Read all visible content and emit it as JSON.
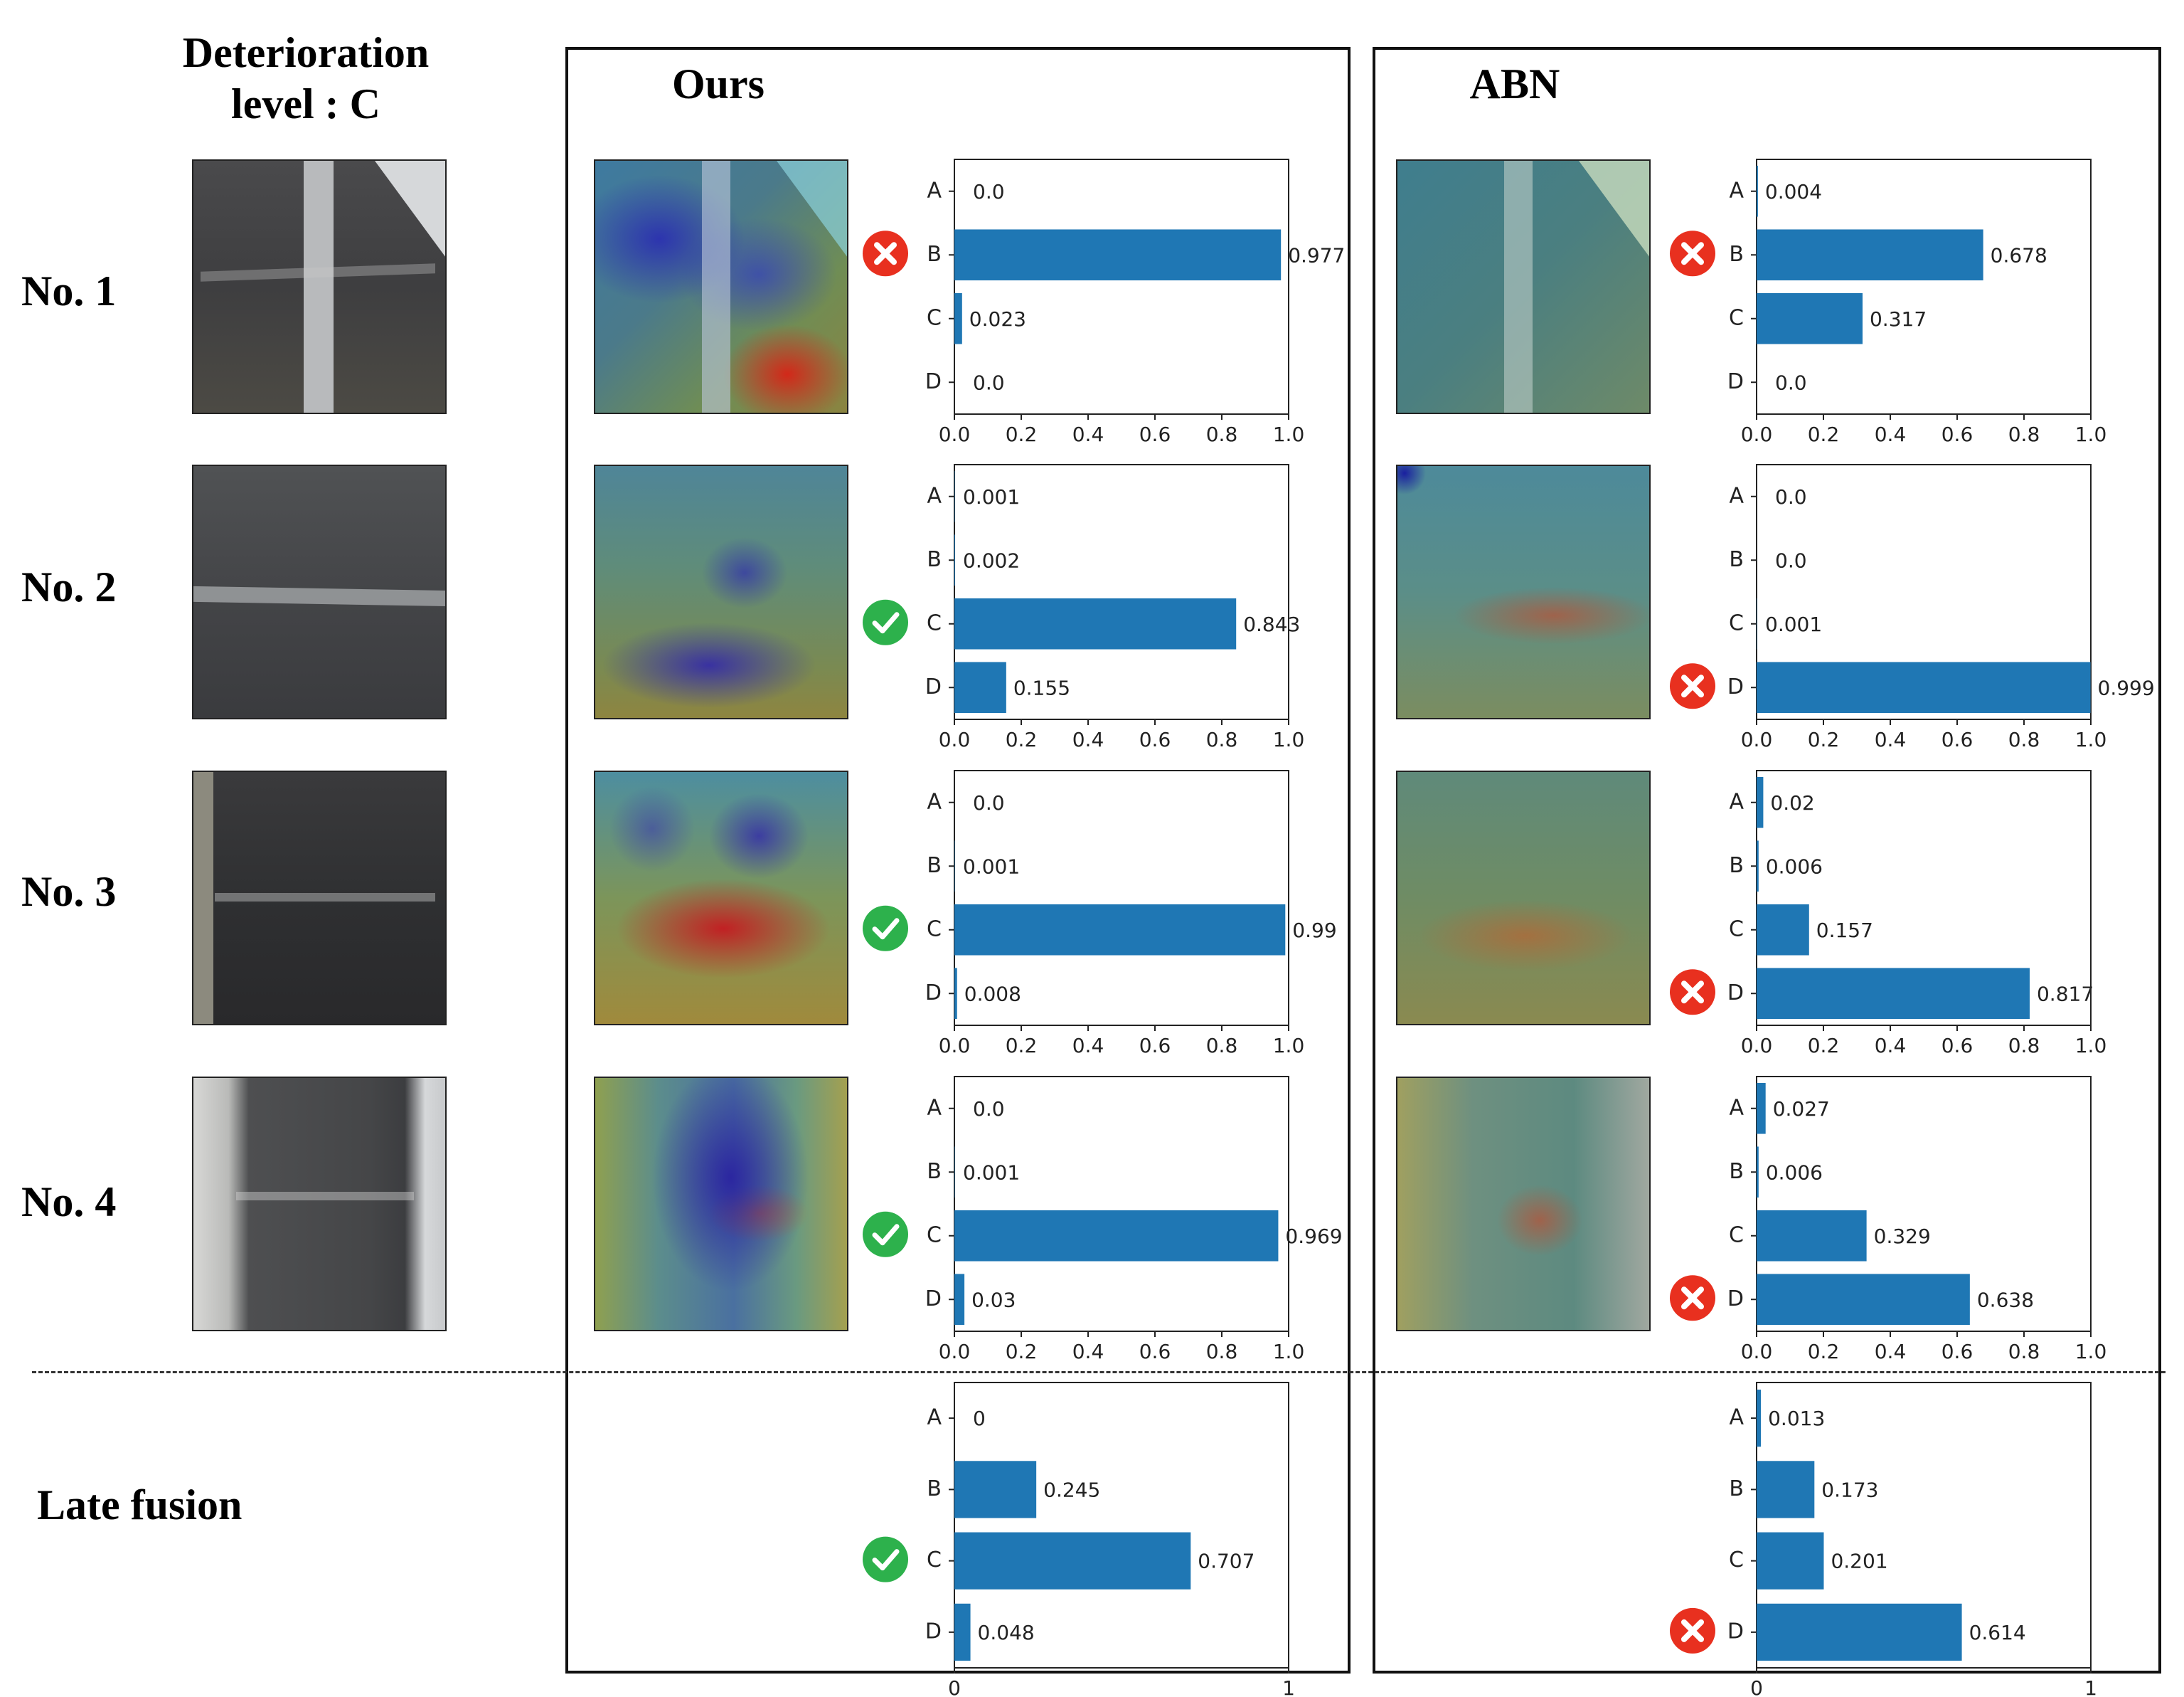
{
  "headers": {
    "input": "Deterioration\nlevel : C",
    "ours": "Ours",
    "abn": "ABN"
  },
  "rows": [
    {
      "label": "No. 1"
    },
    {
      "label": "No. 2"
    },
    {
      "label": "No. 3"
    },
    {
      "label": "No. 4"
    },
    {
      "label": "Late fusion"
    }
  ],
  "colors": {
    "bar": "#1f77b4",
    "correct": "#2db14c",
    "wrong": "#e8301f"
  },
  "icons": [
    "check-circle-icon",
    "cross-circle-icon"
  ],
  "chart_data": [
    {
      "type": "bar",
      "method": "Ours",
      "row": "No. 1",
      "categories": [
        "A",
        "B",
        "C",
        "D"
      ],
      "values": [
        0.0,
        0.977,
        0.023,
        0.0
      ],
      "value_labels": [
        "0.0",
        "0.977",
        "0.023",
        "0.0"
      ],
      "xlim": [
        0,
        1
      ],
      "xticks": [
        "0.0",
        "0.2",
        "0.4",
        "0.6",
        "0.8",
        "1.0"
      ],
      "prediction": "B",
      "status": "wrong"
    },
    {
      "type": "bar",
      "method": "ABN",
      "row": "No. 1",
      "categories": [
        "A",
        "B",
        "C",
        "D"
      ],
      "values": [
        0.004,
        0.678,
        0.317,
        0.0
      ],
      "value_labels": [
        "0.004",
        "0.678",
        "0.317",
        "0.0"
      ],
      "xlim": [
        0,
        1
      ],
      "xticks": [
        "0.0",
        "0.2",
        "0.4",
        "0.6",
        "0.8",
        "1.0"
      ],
      "prediction": "B",
      "status": "wrong"
    },
    {
      "type": "bar",
      "method": "Ours",
      "row": "No. 2",
      "categories": [
        "A",
        "B",
        "C",
        "D"
      ],
      "values": [
        0.001,
        0.002,
        0.843,
        0.155
      ],
      "value_labels": [
        "0.001",
        "0.002",
        "0.843",
        "0.155"
      ],
      "xlim": [
        0,
        1
      ],
      "xticks": [
        "0.0",
        "0.2",
        "0.4",
        "0.6",
        "0.8",
        "1.0"
      ],
      "prediction": "C",
      "status": "correct"
    },
    {
      "type": "bar",
      "method": "ABN",
      "row": "No. 2",
      "categories": [
        "A",
        "B",
        "C",
        "D"
      ],
      "values": [
        0.0,
        0.0,
        0.001,
        0.999
      ],
      "value_labels": [
        "0.0",
        "0.0",
        "0.001",
        "0.999"
      ],
      "xlim": [
        0,
        1
      ],
      "xticks": [
        "0.0",
        "0.2",
        "0.4",
        "0.6",
        "0.8",
        "1.0"
      ],
      "prediction": "D",
      "status": "wrong"
    },
    {
      "type": "bar",
      "method": "Ours",
      "row": "No. 3",
      "categories": [
        "A",
        "B",
        "C",
        "D"
      ],
      "values": [
        0.0,
        0.001,
        0.99,
        0.008
      ],
      "value_labels": [
        "0.0",
        "0.001",
        "0.99",
        "0.008"
      ],
      "xlim": [
        0,
        1
      ],
      "xticks": [
        "0.0",
        "0.2",
        "0.4",
        "0.6",
        "0.8",
        "1.0"
      ],
      "prediction": "C",
      "status": "correct"
    },
    {
      "type": "bar",
      "method": "ABN",
      "row": "No. 3",
      "categories": [
        "A",
        "B",
        "C",
        "D"
      ],
      "values": [
        0.02,
        0.006,
        0.157,
        0.817
      ],
      "value_labels": [
        "0.02",
        "0.006",
        "0.157",
        "0.817"
      ],
      "xlim": [
        0,
        1
      ],
      "xticks": [
        "0.0",
        "0.2",
        "0.4",
        "0.6",
        "0.8",
        "1.0"
      ],
      "prediction": "D",
      "status": "wrong"
    },
    {
      "type": "bar",
      "method": "Ours",
      "row": "No. 4",
      "categories": [
        "A",
        "B",
        "C",
        "D"
      ],
      "values": [
        0.0,
        0.001,
        0.969,
        0.03
      ],
      "value_labels": [
        "0.0",
        "0.001",
        "0.969",
        "0.03"
      ],
      "xlim": [
        0,
        1
      ],
      "xticks": [
        "0.0",
        "0.2",
        "0.4",
        "0.6",
        "0.8",
        "1.0"
      ],
      "prediction": "C",
      "status": "correct"
    },
    {
      "type": "bar",
      "method": "ABN",
      "row": "No. 4",
      "categories": [
        "A",
        "B",
        "C",
        "D"
      ],
      "values": [
        0.027,
        0.006,
        0.329,
        0.638
      ],
      "value_labels": [
        "0.027",
        "0.006",
        "0.329",
        "0.638"
      ],
      "xlim": [
        0,
        1
      ],
      "xticks": [
        "0.0",
        "0.2",
        "0.4",
        "0.6",
        "0.8",
        "1.0"
      ],
      "prediction": "D",
      "status": "wrong"
    },
    {
      "type": "bar",
      "method": "Ours",
      "row": "Late fusion",
      "categories": [
        "A",
        "B",
        "C",
        "D"
      ],
      "values": [
        0,
        0.245,
        0.707,
        0.048
      ],
      "value_labels": [
        "0",
        "0.245",
        "0.707",
        "0.048"
      ],
      "xlim": [
        0,
        1
      ],
      "xticks": [
        "0",
        "1"
      ],
      "prediction": "C",
      "status": "correct"
    },
    {
      "type": "bar",
      "method": "ABN",
      "row": "Late fusion",
      "categories": [
        "A",
        "B",
        "C",
        "D"
      ],
      "values": [
        0.013,
        0.173,
        0.201,
        0.614
      ],
      "value_labels": [
        "0.013",
        "0.173",
        "0.201",
        "0.614"
      ],
      "xlim": [
        0,
        1
      ],
      "xticks": [
        "0",
        "1"
      ],
      "prediction": "D",
      "status": "wrong"
    }
  ]
}
